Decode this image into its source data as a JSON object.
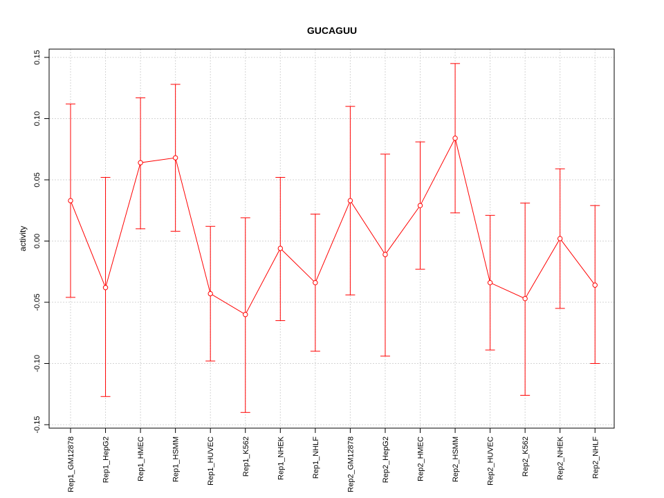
{
  "chart_data": {
    "type": "line",
    "title": "GUCAGUU",
    "xlabel": "",
    "ylabel": "activity",
    "ylim": [
      -0.15,
      0.15
    ],
    "yticks": [
      -0.15,
      -0.1,
      -0.05,
      0.0,
      0.05,
      0.1,
      0.15
    ],
    "ytick_labels": [
      "-0.15",
      "-0.10",
      "-0.05",
      "0.00",
      "0.05",
      "0.10",
      "0.15"
    ],
    "grid": true,
    "color": "#ff0000",
    "categories": [
      "Rep1_GM12878",
      "Rep1_HepG2",
      "Rep1_HMEC",
      "Rep1_HSMM",
      "Rep1_HUVEC",
      "Rep1_K562",
      "Rep1_NHEK",
      "Rep1_NHLF",
      "Rep2_GM12878",
      "Rep2_HepG2",
      "Rep2_HMEC",
      "Rep2_HSMM",
      "Rep2_HUVEC",
      "Rep2_K562",
      "Rep2_NHEK",
      "Rep2_NHLF"
    ],
    "values": [
      0.033,
      -0.038,
      0.064,
      0.068,
      -0.043,
      -0.06,
      -0.006,
      -0.034,
      0.033,
      -0.011,
      0.029,
      0.084,
      -0.034,
      -0.047,
      0.002,
      -0.036
    ],
    "upper": [
      0.112,
      0.052,
      0.117,
      0.128,
      0.012,
      0.019,
      0.052,
      0.022,
      0.11,
      0.071,
      0.081,
      0.145,
      0.021,
      0.031,
      0.059,
      0.029
    ],
    "lower": [
      -0.046,
      -0.127,
      0.01,
      0.008,
      -0.098,
      -0.14,
      -0.065,
      -0.09,
      -0.044,
      -0.094,
      -0.023,
      0.023,
      -0.089,
      -0.126,
      -0.055,
      -0.1
    ]
  }
}
